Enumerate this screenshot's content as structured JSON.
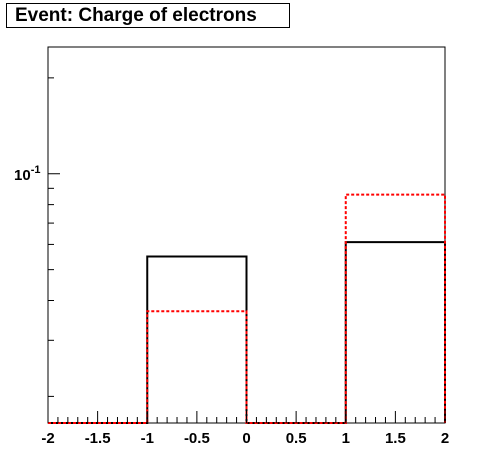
{
  "title": "Event: Charge of electrons",
  "chart_data": {
    "type": "histogram",
    "title": "Event: Charge of electrons",
    "xlabel": "",
    "ylabel": "",
    "y_scale": "log",
    "xlim": [
      -2,
      2
    ],
    "ylim": [
      0.0165,
      0.25
    ],
    "bin_edges": [
      -2,
      -1,
      0,
      1,
      2
    ],
    "x_tick_labels": [
      "-2",
      "-1.5",
      "-1",
      "-0.5",
      "0",
      "0.5",
      "1",
      "1.5",
      "2"
    ],
    "y_tick_labels": [
      {
        "base": "10",
        "exp": "-1",
        "value": 0.1
      }
    ],
    "series": [
      {
        "style": "solid",
        "color": "#000000",
        "values": [
          0,
          0.055,
          0,
          0.061
        ]
      },
      {
        "style": "dashed",
        "color": "#ff0000",
        "values": [
          0,
          0.037,
          0,
          0.086
        ]
      }
    ],
    "grid": false,
    "legend": "none"
  }
}
